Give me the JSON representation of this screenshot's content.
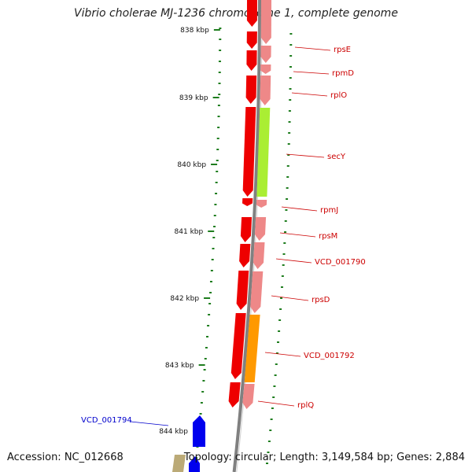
{
  "title": "Vibrio cholerae MJ-1236 chromosome 1, complete genome",
  "footer": {
    "accession": "Accession: NC_012668",
    "summary": "Topology: circular; Length: 3,149,584 bp; Genes: 2,884"
  },
  "colors": {
    "backbone": "#808080",
    "tick": "#1e7d1e",
    "gene_red": "#ee0000",
    "gene_pink": "#ee8888",
    "gene_green": "#aaee33",
    "gene_orange": "#ff9900",
    "gene_blue": "#0000ee",
    "gene_olive": "#bbaa77",
    "label_red": "#cc0000",
    "label_blue": "#0000cc"
  },
  "scale": {
    "labels": [
      "838 kbp",
      "839 kbp",
      "840 kbp",
      "841 kbp",
      "842 kbp",
      "843 kbp",
      "844 kbp"
    ]
  },
  "genes": {
    "labels": [
      "rpsE",
      "rpmD",
      "rplO",
      "secY",
      "rpmJ",
      "rpsM",
      "VCD_001790",
      "rpsD",
      "VCD_001792",
      "rplQ",
      "VCD_001794"
    ]
  }
}
